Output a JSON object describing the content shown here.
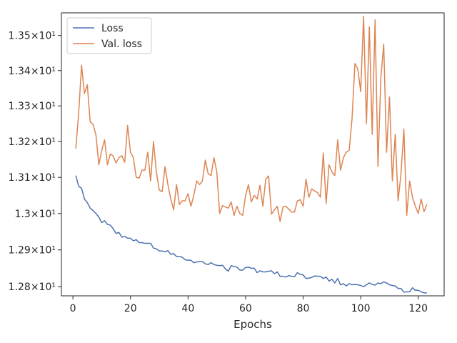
{
  "chart_data": {
    "type": "line",
    "xlabel": "Epochs",
    "ylabel": "",
    "xlim": [
      -4,
      129
    ],
    "ylim": [
      12.775,
      13.565
    ],
    "xticks": [
      0,
      20,
      40,
      60,
      80,
      100,
      120
    ],
    "xtick_labels": [
      "0",
      "20",
      "40",
      "60",
      "80",
      "100",
      "120"
    ],
    "yticks": [
      12.8,
      12.9,
      13.0,
      13.1,
      13.2,
      13.3,
      13.4,
      13.5
    ],
    "ytick_labels": [
      "1.28×10¹",
      "1.29×10¹",
      "1.3×10¹",
      "1.31×10¹",
      "1.32×10¹",
      "1.33×10¹",
      "1.34×10¹",
      "1.35×10¹"
    ],
    "y_scale": "log",
    "grid": false,
    "legend": "top-left",
    "series": [
      {
        "name": "Loss",
        "color": "#4c72b0",
        "x": [
          1,
          2,
          3,
          4,
          5,
          6,
          7,
          8,
          9,
          10,
          11,
          12,
          13,
          14,
          15,
          16,
          17,
          18,
          19,
          20,
          21,
          22,
          23,
          24,
          25,
          26,
          27,
          28,
          29,
          30,
          31,
          32,
          33,
          34,
          35,
          36,
          37,
          38,
          39,
          40,
          41,
          42,
          43,
          44,
          45,
          46,
          47,
          48,
          49,
          50,
          51,
          52,
          53,
          54,
          55,
          56,
          57,
          58,
          59,
          60,
          61,
          62,
          63,
          64,
          65,
          66,
          67,
          68,
          69,
          70,
          71,
          72,
          73,
          74,
          75,
          76,
          77,
          78,
          79,
          80,
          81,
          82,
          83,
          84,
          85,
          86,
          87,
          88,
          89,
          90,
          91,
          92,
          93,
          94,
          95,
          96,
          97,
          98,
          99,
          100,
          101,
          102,
          103,
          104,
          105,
          106,
          107,
          108,
          109,
          110,
          111,
          112,
          113,
          114,
          115,
          116,
          117,
          118,
          119,
          120,
          121,
          122,
          123
        ],
        "values": [
          13.105,
          13.075,
          13.07,
          13.04,
          13.03,
          13.015,
          13.008,
          13.0,
          12.99,
          12.975,
          12.98,
          12.97,
          12.968,
          12.958,
          12.945,
          12.948,
          12.935,
          12.937,
          12.932,
          12.932,
          12.925,
          12.928,
          12.92,
          12.92,
          12.918,
          12.918,
          12.918,
          12.905,
          12.903,
          12.897,
          12.897,
          12.895,
          12.898,
          12.888,
          12.89,
          12.882,
          12.882,
          12.88,
          12.873,
          12.872,
          12.872,
          12.865,
          12.867,
          12.868,
          12.868,
          12.862,
          12.86,
          12.865,
          12.86,
          12.858,
          12.857,
          12.858,
          12.848,
          12.842,
          12.857,
          12.855,
          12.853,
          12.845,
          12.845,
          12.852,
          12.853,
          12.85,
          12.85,
          12.838,
          12.843,
          12.84,
          12.84,
          12.842,
          12.843,
          12.835,
          12.84,
          12.828,
          12.828,
          12.826,
          12.83,
          12.828,
          12.827,
          12.838,
          12.833,
          12.832,
          12.822,
          12.823,
          12.825,
          12.829,
          12.828,
          12.828,
          12.822,
          12.826,
          12.815,
          12.82,
          12.81,
          12.822,
          12.805,
          12.808,
          12.802,
          12.808,
          12.805,
          12.806,
          12.805,
          12.803,
          12.8,
          12.805,
          12.81,
          12.806,
          12.804,
          12.81,
          12.808,
          12.813,
          12.81,
          12.805,
          12.803,
          12.802,
          12.795,
          12.795,
          12.785,
          12.786,
          12.786,
          12.797,
          12.79,
          12.79,
          12.786,
          12.783,
          12.783
        ]
      },
      {
        "name": "Val. loss",
        "color": "#dd8452",
        "x": [
          1,
          2,
          3,
          4,
          5,
          6,
          7,
          8,
          9,
          10,
          11,
          12,
          13,
          14,
          15,
          16,
          17,
          18,
          19,
          20,
          21,
          22,
          23,
          24,
          25,
          26,
          27,
          28,
          29,
          30,
          31,
          32,
          33,
          34,
          35,
          36,
          37,
          38,
          39,
          40,
          41,
          42,
          43,
          44,
          45,
          46,
          47,
          48,
          49,
          50,
          51,
          52,
          53,
          54,
          55,
          56,
          57,
          58,
          59,
          60,
          61,
          62,
          63,
          64,
          65,
          66,
          67,
          68,
          69,
          70,
          71,
          72,
          73,
          74,
          75,
          76,
          77,
          78,
          79,
          80,
          81,
          82,
          83,
          84,
          85,
          86,
          87,
          88,
          89,
          90,
          91,
          92,
          93,
          94,
          95,
          96,
          97,
          98,
          99,
          100,
          101,
          102,
          103,
          104,
          105,
          106,
          107,
          108,
          109,
          110,
          111,
          112,
          113,
          114,
          115,
          116,
          117,
          118,
          119,
          120,
          121,
          122,
          123
        ],
        "values": [
          13.18,
          13.28,
          13.415,
          13.335,
          13.36,
          13.255,
          13.248,
          13.218,
          13.135,
          13.175,
          13.205,
          13.135,
          13.165,
          13.16,
          13.14,
          13.155,
          13.16,
          13.142,
          13.245,
          13.17,
          13.155,
          13.1,
          13.098,
          13.12,
          13.12,
          13.17,
          13.09,
          13.2,
          13.115,
          13.065,
          13.06,
          13.13,
          13.08,
          13.04,
          13.01,
          13.08,
          13.025,
          13.035,
          13.035,
          13.055,
          13.02,
          13.05,
          13.09,
          13.08,
          13.09,
          13.148,
          13.11,
          13.105,
          13.155,
          13.115,
          13.0,
          13.022,
          13.018,
          13.015,
          13.032,
          12.995,
          13.02,
          13.0,
          12.995,
          13.05,
          13.08,
          13.032,
          13.05,
          13.04,
          13.078,
          13.02,
          13.095,
          13.104,
          12.998,
          13.01,
          13.02,
          12.978,
          13.018,
          13.02,
          13.012,
          13.004,
          13.004,
          13.035,
          13.038,
          13.02,
          13.095,
          13.045,
          13.068,
          13.062,
          13.058,
          13.045,
          13.168,
          13.028,
          13.135,
          13.115,
          13.105,
          13.205,
          13.12,
          13.155,
          13.17,
          13.175,
          13.265,
          13.42,
          13.405,
          13.34,
          13.555,
          13.25,
          13.525,
          13.22,
          13.545,
          13.13,
          13.38,
          13.475,
          13.17,
          13.325,
          13.09,
          13.22,
          13.035,
          13.11,
          13.235,
          12.995,
          13.09,
          13.045,
          13.02,
          13.0,
          13.04,
          13.005,
          13.025
        ]
      }
    ]
  }
}
